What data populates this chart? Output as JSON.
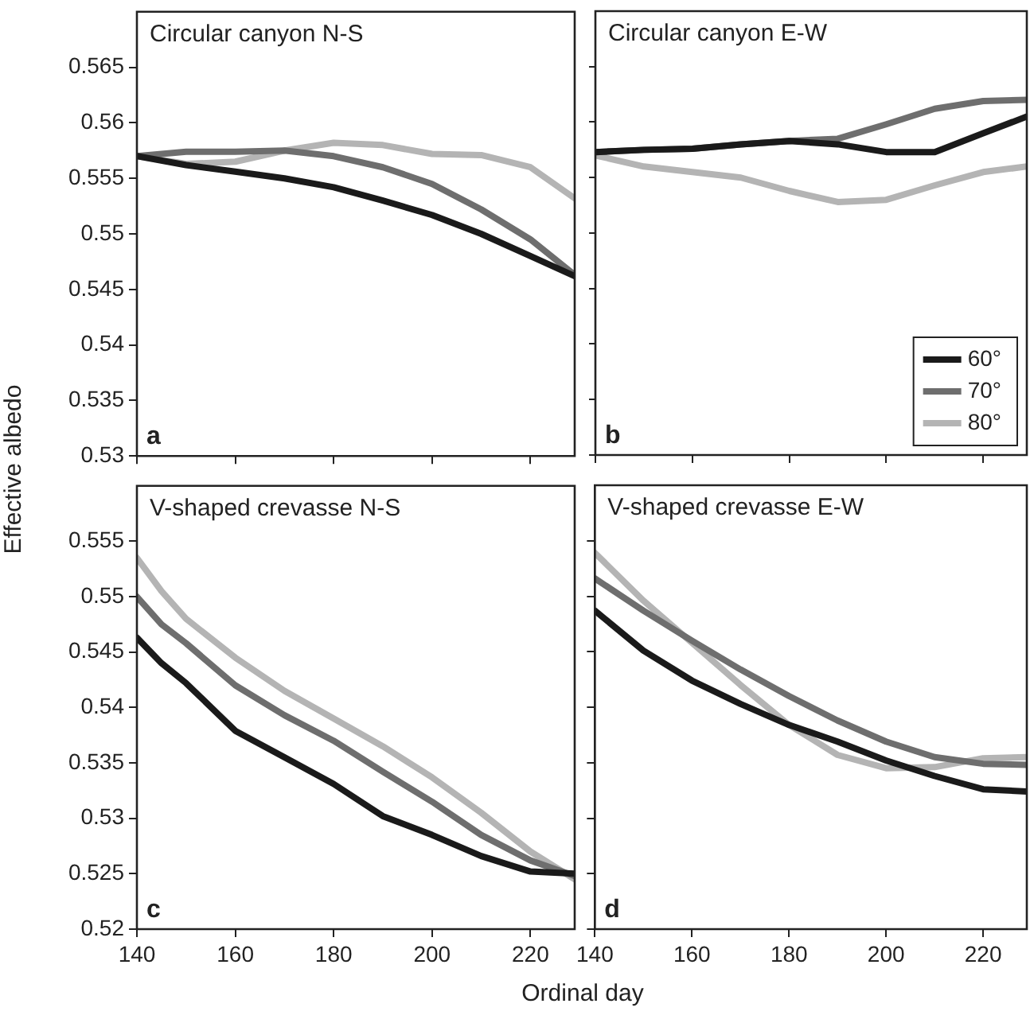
{
  "chart_data": [
    {
      "type": "line",
      "title": "Circular canyon N-S",
      "ylabel": "Effective albedo",
      "annotations": [
        "a"
      ],
      "x": [
        140,
        150,
        160,
        170,
        180,
        190,
        200,
        210,
        220,
        229
      ],
      "xlim": [
        140,
        229
      ],
      "xticks": [
        140,
        160,
        180,
        200,
        220
      ],
      "ylim": [
        0.53,
        0.57
      ],
      "yticks": [
        0.53,
        0.535,
        0.54,
        0.545,
        0.55,
        0.555,
        0.56,
        0.565
      ],
      "tick_labels": "y",
      "series": [
        {
          "color": "#1a1a1a",
          "values": [
            0.557,
            0.5562,
            0.5556,
            0.555,
            0.5542,
            0.553,
            0.5517,
            0.55,
            0.548,
            0.5462
          ]
        },
        {
          "color": "#6e6e6e",
          "values": [
            0.557,
            0.5574,
            0.5574,
            0.5575,
            0.557,
            0.556,
            0.5545,
            0.5522,
            0.5495,
            0.5463
          ]
        },
        {
          "color": "#b4b4b4",
          "values": [
            0.557,
            0.5563,
            0.5565,
            0.5575,
            0.5582,
            0.558,
            0.5572,
            0.5571,
            0.556,
            0.5532
          ]
        }
      ]
    },
    {
      "type": "line",
      "title": "Circular canyon E-W",
      "annotations": [
        "b"
      ],
      "legend": "bottom right",
      "x": [
        140,
        150,
        160,
        170,
        180,
        190,
        200,
        210,
        220,
        229
      ],
      "xlim": [
        140,
        229
      ],
      "xticks": [
        140,
        160,
        180,
        200,
        220
      ],
      "ylim": [
        0.53,
        0.57
      ],
      "yticks": [
        0.53,
        0.535,
        0.54,
        0.545,
        0.55,
        0.555,
        0.56,
        0.565
      ],
      "tick_labels": false,
      "series": [
        {
          "name": "60°",
          "color": "#1a1a1a",
          "values": [
            0.5573,
            0.5575,
            0.5576,
            0.558,
            0.5583,
            0.558,
            0.5573,
            0.5573,
            0.559,
            0.5605
          ]
        },
        {
          "name": "70°",
          "color": "#6e6e6e",
          "values": [
            0.5573,
            0.5575,
            0.5576,
            0.558,
            0.5583,
            0.5585,
            0.5598,
            0.5612,
            0.5619,
            0.562
          ]
        },
        {
          "name": "80°",
          "color": "#b4b4b4",
          "values": [
            0.557,
            0.556,
            0.5555,
            0.555,
            0.5538,
            0.5528,
            0.553,
            0.5543,
            0.5555,
            0.556
          ]
        }
      ]
    },
    {
      "type": "line",
      "title": "V-shaped crevasse N-S",
      "xlabel": "Ordinal day",
      "annotations": [
        "c"
      ],
      "x": [
        140,
        145,
        150,
        160,
        170,
        180,
        190,
        200,
        210,
        220,
        229
      ],
      "xlim": [
        140,
        229
      ],
      "xticks": [
        140,
        160,
        180,
        200,
        220
      ],
      "ylim": [
        0.52,
        0.56
      ],
      "yticks": [
        0.52,
        0.525,
        0.53,
        0.535,
        0.54,
        0.545,
        0.55,
        0.555
      ],
      "series": [
        {
          "color": "#1a1a1a",
          "values": [
            0.5463,
            0.544,
            0.5422,
            0.5379,
            0.5355,
            0.5331,
            0.5302,
            0.5285,
            0.5266,
            0.5252,
            0.525
          ]
        },
        {
          "color": "#6e6e6e",
          "values": [
            0.55,
            0.5475,
            0.5458,
            0.542,
            0.5393,
            0.537,
            0.5342,
            0.5315,
            0.5285,
            0.5262,
            0.5248
          ]
        },
        {
          "color": "#b4b4b4",
          "values": [
            0.5535,
            0.5505,
            0.548,
            0.5445,
            0.5415,
            0.539,
            0.5365,
            0.5337,
            0.5305,
            0.527,
            0.5245
          ]
        }
      ]
    },
    {
      "type": "line",
      "title": "V-shaped crevasse E-W",
      "annotations": [
        "d"
      ],
      "x": [
        140,
        150,
        160,
        170,
        180,
        190,
        200,
        210,
        220,
        229
      ],
      "xlim": [
        140,
        229
      ],
      "xticks": [
        140,
        160,
        180,
        200,
        220
      ],
      "ylim": [
        0.52,
        0.56
      ],
      "yticks": [
        0.52,
        0.525,
        0.53,
        0.535,
        0.54,
        0.545,
        0.55,
        0.555
      ],
      "tick_labels": "x",
      "series": [
        {
          "color": "#1a1a1a",
          "values": [
            0.5487,
            0.5451,
            0.5424,
            0.5403,
            0.5384,
            0.5369,
            0.5352,
            0.5338,
            0.5326,
            0.5324
          ]
        },
        {
          "color": "#6e6e6e",
          "values": [
            0.5516,
            0.5487,
            0.546,
            0.5434,
            0.541,
            0.5388,
            0.5369,
            0.5355,
            0.5349,
            0.5348
          ]
        },
        {
          "color": "#b4b4b4",
          "values": [
            0.5539,
            0.5496,
            0.5458,
            0.542,
            0.5384,
            0.5357,
            0.5345,
            0.5346,
            0.5354,
            0.5355
          ]
        }
      ]
    }
  ]
}
